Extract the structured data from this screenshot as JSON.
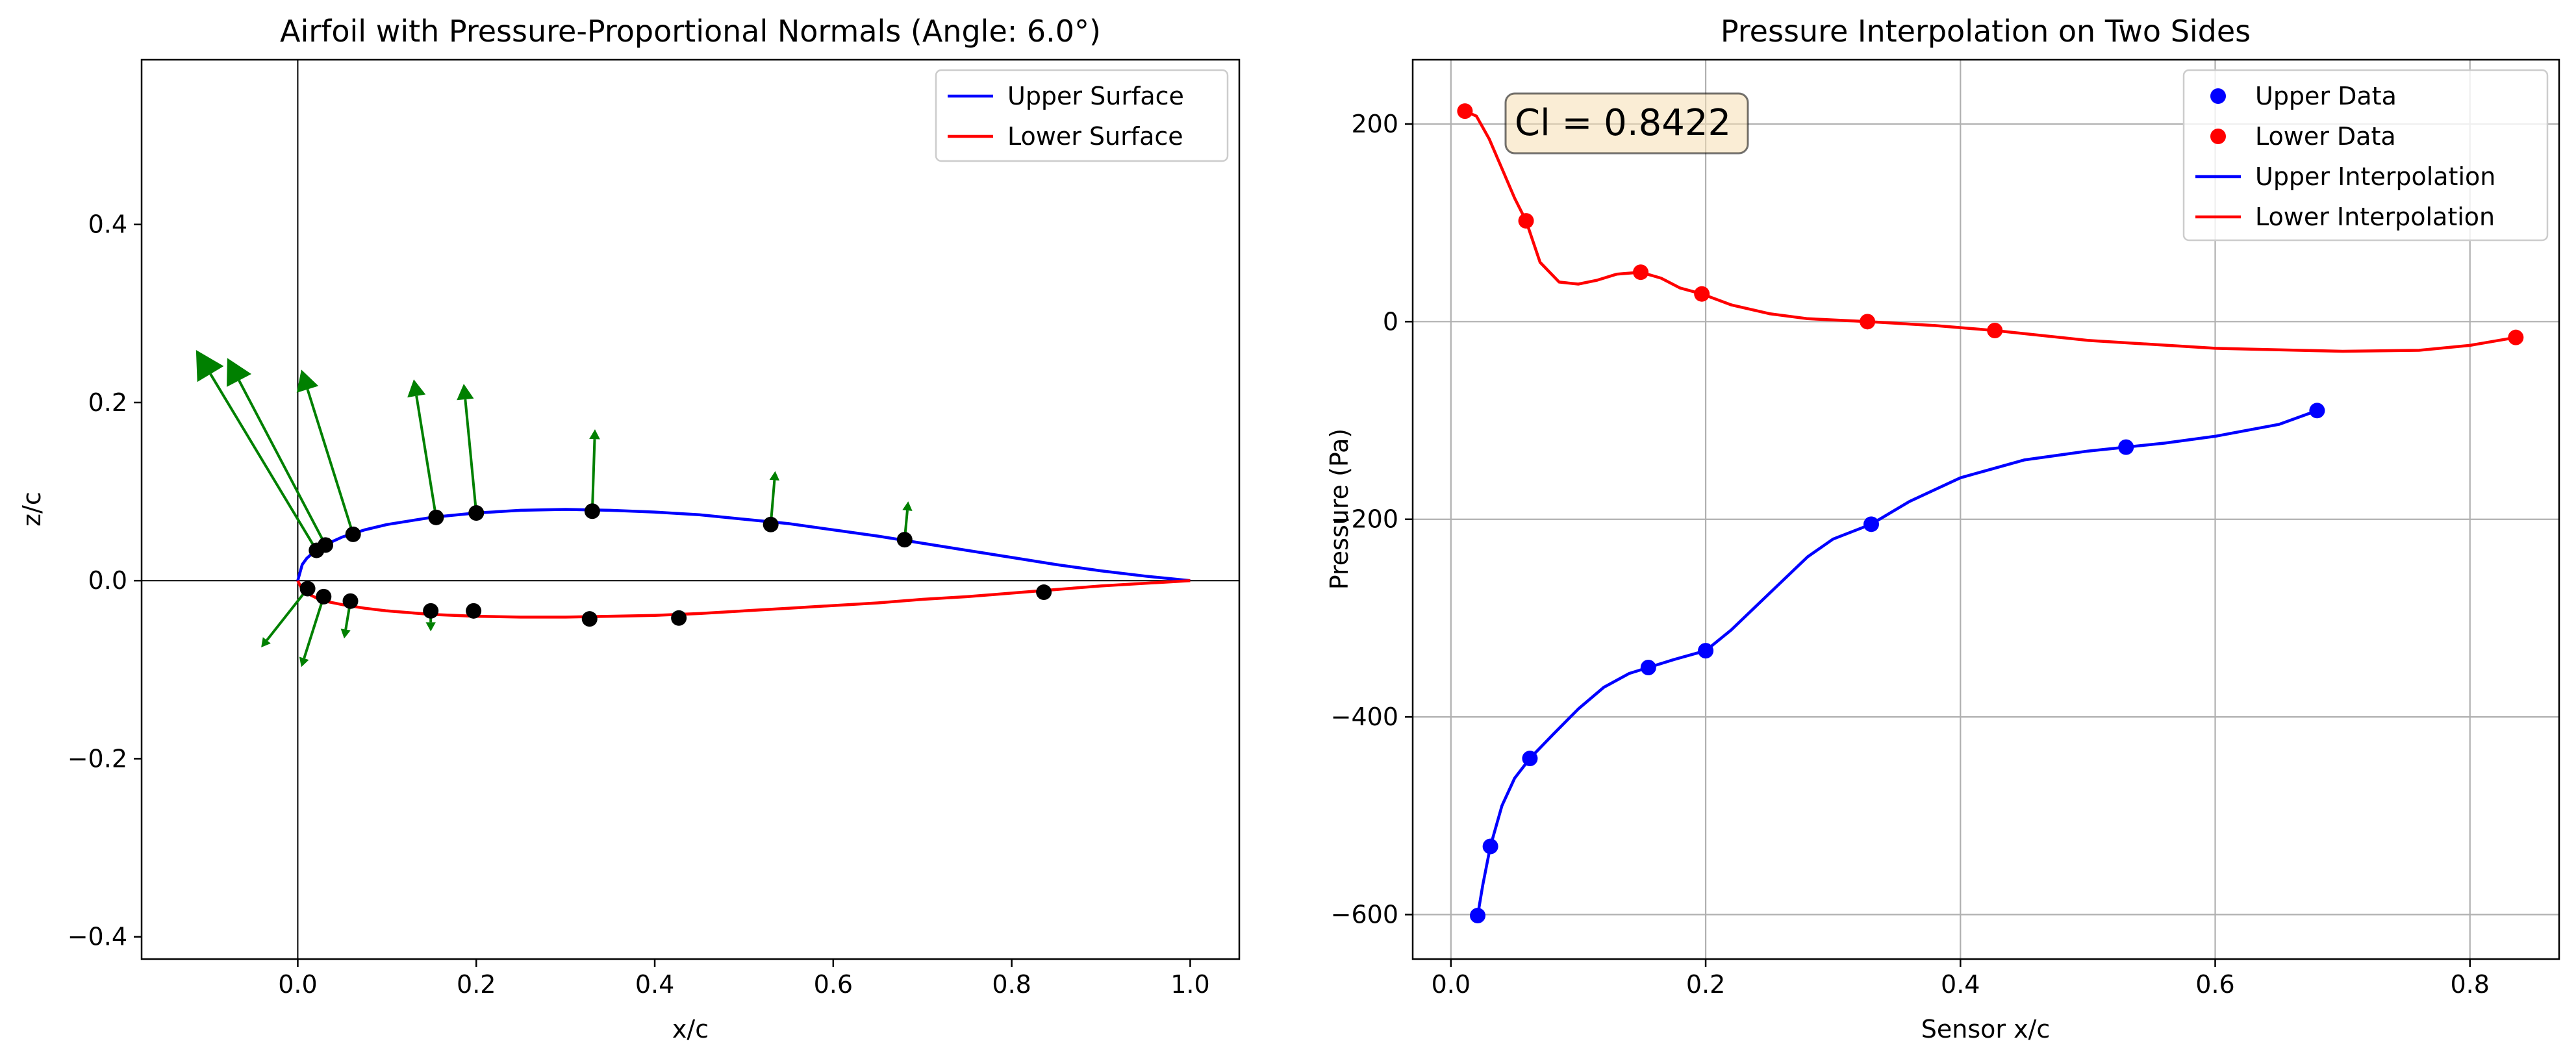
{
  "chart_data": [
    {
      "type": "line",
      "title": "Airfoil with Pressure-Proportional Normals (Angle: 6.0°)",
      "xlabel": "x/c",
      "ylabel": "z/c",
      "xlim": [
        -0.175,
        1.055
      ],
      "ylim": [
        -0.425,
        0.585
      ],
      "xticks": [
        0.0,
        0.2,
        0.4,
        0.6,
        0.8,
        1.0
      ],
      "xtick_labels": [
        "0.0",
        "0.2",
        "0.4",
        "0.6",
        "0.8",
        "1.0"
      ],
      "yticks": [
        -0.4,
        -0.2,
        0.0,
        0.2,
        0.4
      ],
      "ytick_labels": [
        "−0.4",
        "−0.2",
        "0.0",
        "0.2",
        "0.4"
      ],
      "grid": false,
      "legend": "top-right",
      "colors": {
        "upper": "#0000ff",
        "lower": "#ff0000",
        "normals": "#008000",
        "sensors": "#000000",
        "axes_lines": "#000000"
      },
      "series": [
        {
          "name": "Upper Surface",
          "color": "#0000ff",
          "x": [
            0.0,
            0.005,
            0.01,
            0.02,
            0.03,
            0.05,
            0.075,
            0.1,
            0.15,
            0.2,
            0.25,
            0.3,
            0.35,
            0.4,
            0.45,
            0.5,
            0.55,
            0.6,
            0.65,
            0.7,
            0.75,
            0.8,
            0.85,
            0.9,
            0.95,
            1.0
          ],
          "y": [
            0.0,
            0.018,
            0.025,
            0.034,
            0.04,
            0.049,
            0.057,
            0.063,
            0.071,
            0.076,
            0.079,
            0.08,
            0.079,
            0.077,
            0.074,
            0.069,
            0.064,
            0.057,
            0.05,
            0.042,
            0.034,
            0.026,
            0.018,
            0.011,
            0.005,
            0.0
          ]
        },
        {
          "name": "Lower Surface",
          "color": "#ff0000",
          "x": [
            0.0,
            0.005,
            0.01,
            0.02,
            0.03,
            0.05,
            0.075,
            0.1,
            0.15,
            0.2,
            0.25,
            0.3,
            0.35,
            0.4,
            0.45,
            0.5,
            0.55,
            0.6,
            0.65,
            0.7,
            0.75,
            0.8,
            0.85,
            0.9,
            0.95,
            1.0
          ],
          "y": [
            0.0,
            -0.01,
            -0.014,
            -0.019,
            -0.023,
            -0.027,
            -0.031,
            -0.034,
            -0.038,
            -0.04,
            -0.041,
            -0.041,
            -0.04,
            -0.039,
            -0.037,
            -0.034,
            -0.031,
            -0.028,
            -0.025,
            -0.021,
            -0.018,
            -0.014,
            -0.01,
            -0.006,
            -0.003,
            0.0
          ]
        }
      ],
      "sensors": {
        "upper_x": [
          0.021,
          0.031,
          0.062,
          0.155,
          0.2,
          0.33,
          0.53,
          0.68
        ],
        "upper_y": [
          0.034,
          0.04,
          0.052,
          0.071,
          0.076,
          0.078,
          0.063,
          0.046
        ],
        "lower_x": [
          0.011,
          0.029,
          0.059,
          0.149,
          0.197,
          0.327,
          0.427,
          0.836
        ],
        "lower_y": [
          -0.009,
          -0.018,
          -0.023,
          -0.034,
          -0.034,
          -0.043,
          -0.042,
          -0.013
        ]
      },
      "normals": [
        {
          "x": 0.021,
          "y": 0.034,
          "dx": -0.135,
          "dy": 0.225
        },
        {
          "x": 0.031,
          "y": 0.04,
          "dx": -0.11,
          "dy": 0.21
        },
        {
          "x": 0.062,
          "y": 0.052,
          "dx": -0.058,
          "dy": 0.185
        },
        {
          "x": 0.155,
          "y": 0.071,
          "dx": -0.025,
          "dy": 0.155
        },
        {
          "x": 0.2,
          "y": 0.076,
          "dx": -0.014,
          "dy": 0.145
        },
        {
          "x": 0.33,
          "y": 0.078,
          "dx": 0.003,
          "dy": 0.092
        },
        {
          "x": 0.53,
          "y": 0.063,
          "dx": 0.005,
          "dy": 0.06
        },
        {
          "x": 0.68,
          "y": 0.046,
          "dx": 0.004,
          "dy": 0.043
        },
        {
          "x": 0.011,
          "y": -0.009,
          "dx": -0.052,
          "dy": -0.066
        },
        {
          "x": 0.029,
          "y": -0.018,
          "dx": -0.025,
          "dy": -0.079
        },
        {
          "x": 0.059,
          "y": -0.023,
          "dx": -0.007,
          "dy": -0.042
        },
        {
          "x": 0.149,
          "y": -0.034,
          "dx": 0.0,
          "dy": -0.023
        }
      ]
    },
    {
      "type": "line",
      "title": "Pressure Interpolation on Two Sides",
      "xlabel": "Sensor x/c",
      "ylabel": "Pressure (Pa)",
      "xlim": [
        -0.03,
        0.87
      ],
      "ylim": [
        -645,
        265
      ],
      "xticks": [
        0.0,
        0.2,
        0.4,
        0.6,
        0.8
      ],
      "xtick_labels": [
        "0.0",
        "0.2",
        "0.4",
        "0.6",
        "0.8"
      ],
      "yticks": [
        -600,
        -400,
        -200,
        0,
        200
      ],
      "ytick_labels": [
        "−600",
        "−400",
        "−200",
        "0",
        "200"
      ],
      "grid": true,
      "legend": "top-right",
      "annotation": "Cl = 0.8422",
      "annotation_style": {
        "face": "#f5deb3",
        "edge": "#000000"
      },
      "series": [
        {
          "name": "Upper Data",
          "kind": "scatter",
          "color": "#0000ff",
          "x": [
            0.021,
            0.031,
            0.062,
            0.155,
            0.2,
            0.33,
            0.53,
            0.68
          ],
          "y": [
            -601,
            -531,
            -442,
            -350,
            -333,
            -205,
            -127,
            -90
          ]
        },
        {
          "name": "Lower Data",
          "kind": "scatter",
          "color": "#ff0000",
          "x": [
            0.011,
            0.059,
            0.149,
            0.197,
            0.327,
            0.427,
            0.836
          ],
          "y": [
            213,
            102,
            50,
            28,
            0,
            -9,
            -16
          ]
        },
        {
          "name": "Upper Interpolation",
          "kind": "line",
          "color": "#0000ff",
          "x": [
            0.021,
            0.025,
            0.031,
            0.04,
            0.05,
            0.062,
            0.08,
            0.1,
            0.12,
            0.14,
            0.155,
            0.175,
            0.2,
            0.22,
            0.25,
            0.28,
            0.3,
            0.33,
            0.36,
            0.4,
            0.45,
            0.5,
            0.53,
            0.56,
            0.6,
            0.65,
            0.68
          ],
          "y": [
            -601,
            -570,
            -531,
            -490,
            -462,
            -442,
            -418,
            -392,
            -370,
            -356,
            -350,
            -342,
            -333,
            -312,
            -275,
            -238,
            -220,
            -205,
            -182,
            -158,
            -140,
            -131,
            -127,
            -123,
            -116,
            -104,
            -90
          ]
        },
        {
          "name": "Lower Interpolation",
          "kind": "line",
          "color": "#ff0000",
          "x": [
            0.011,
            0.02,
            0.03,
            0.04,
            0.05,
            0.059,
            0.07,
            0.085,
            0.1,
            0.115,
            0.13,
            0.149,
            0.165,
            0.18,
            0.197,
            0.22,
            0.25,
            0.28,
            0.327,
            0.38,
            0.427,
            0.5,
            0.6,
            0.7,
            0.76,
            0.8,
            0.836
          ],
          "y": [
            213,
            208,
            185,
            155,
            125,
            102,
            60,
            40,
            38,
            42,
            48,
            50,
            44,
            34,
            28,
            17,
            8,
            3,
            0,
            -4,
            -9,
            -19,
            -27,
            -30,
            -29,
            -24,
            -16
          ]
        }
      ]
    }
  ]
}
